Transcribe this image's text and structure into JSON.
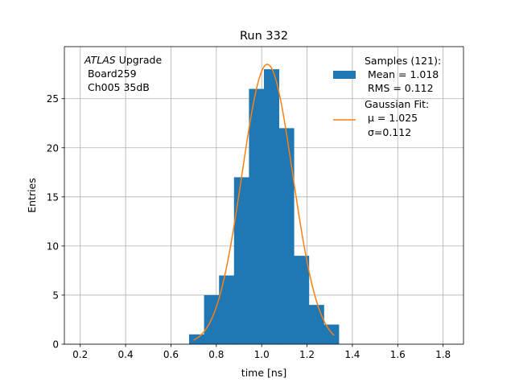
{
  "chart_data": {
    "type": "bar",
    "title": "Run 332",
    "xlabel": "time [ns]",
    "ylabel": "Entries",
    "xlim": [
      0.13,
      1.89
    ],
    "ylim": [
      0,
      30.3
    ],
    "xticks": [
      0.2,
      0.4,
      0.6,
      0.8,
      1.0,
      1.2,
      1.4,
      1.6,
      1.8
    ],
    "xtick_labels": [
      "0.2",
      "0.4",
      "0.6",
      "0.8",
      "1.0",
      "1.2",
      "1.4",
      "1.6",
      "1.8"
    ],
    "yticks": [
      0,
      5,
      10,
      15,
      20,
      25
    ],
    "ytick_labels": [
      "0",
      "5",
      "10",
      "15",
      "20",
      "25"
    ],
    "grid": true,
    "histogram": {
      "name": "Samples (121):",
      "color": "#1f77b4",
      "bin_edges": [
        0.68,
        0.746,
        0.812,
        0.878,
        0.944,
        1.01,
        1.076,
        1.142,
        1.208,
        1.274,
        1.34
      ],
      "counts": [
        1,
        5,
        7,
        17,
        26,
        28,
        22,
        9,
        4,
        2
      ]
    },
    "fit": {
      "name": "Gaussian Fit:",
      "color": "#ff7f0e",
      "amplitude": 28.5,
      "mu": 1.025,
      "sigma": 0.112,
      "x_range": [
        0.7,
        1.32
      ]
    },
    "annotation": {
      "italic": "ATLAS",
      "rest": " Upgrade",
      "line2": " Board259",
      "line3": " Ch005 35dB"
    },
    "legend": {
      "placement": "top-right",
      "hist_title": "Samples (121):",
      "hist_mean": " Mean = 1.018",
      "hist_rms": " RMS = 0.112",
      "fit_title": "Gaussian Fit:",
      "fit_mu": " μ = 1.025",
      "fit_sigma": " σ=0.112"
    }
  }
}
